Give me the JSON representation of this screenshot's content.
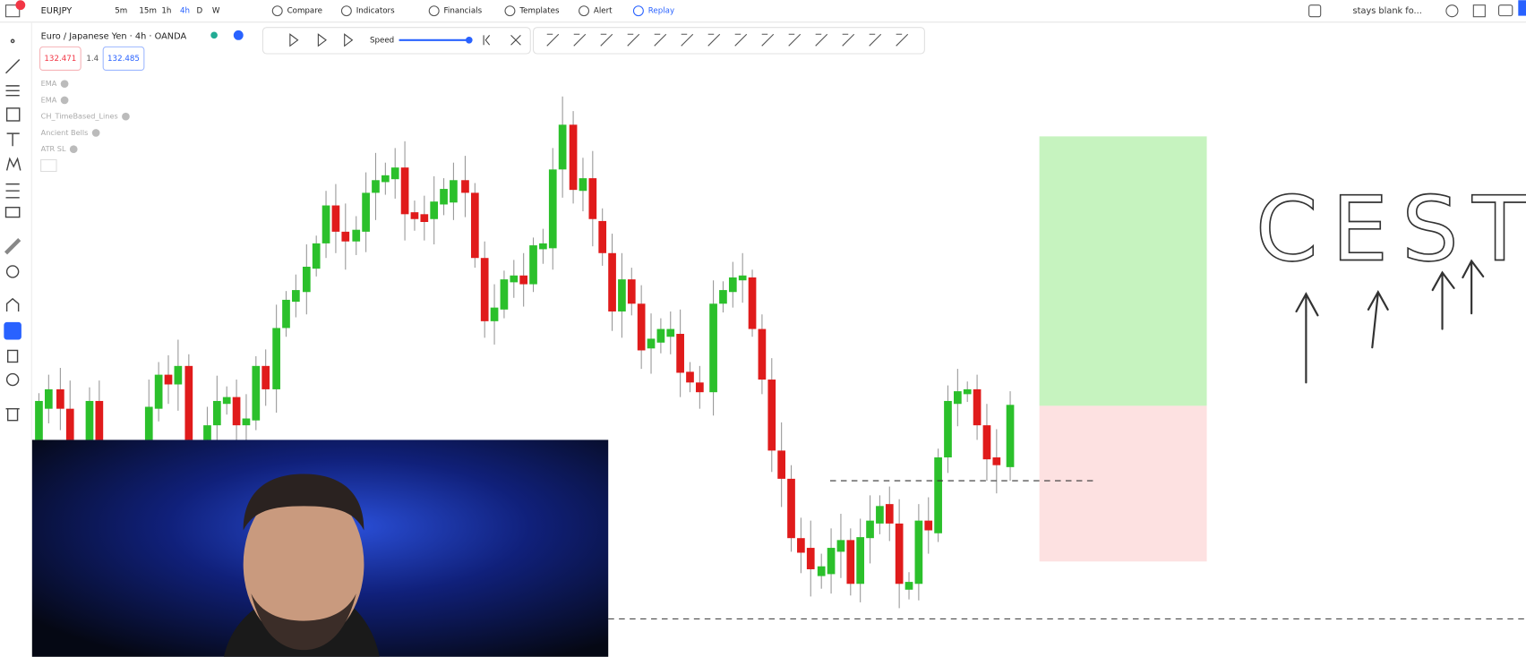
{
  "toolbar": {
    "symbol": "EURJPY",
    "intervals": [
      "5m",
      "15m",
      "1h",
      "4h",
      "D",
      "W"
    ],
    "buttons": [
      "Compare",
      "Indicators",
      "Financials",
      "Templates",
      "Alert",
      "Replay"
    ],
    "layout_name": "stays blank fo..."
  },
  "legend": {
    "title": "Euro / Japanese Yen · 4h · OANDA",
    "sell": "132.471",
    "spread": "1.4",
    "buy": "132.485",
    "indicators": [
      "EMA",
      "EMA",
      "CH_TimeBased_Lines",
      "Ancient Bells",
      "ATR SL"
    ]
  },
  "replay": {
    "speed_label": "Speed"
  },
  "annotation": "CEST"
}
